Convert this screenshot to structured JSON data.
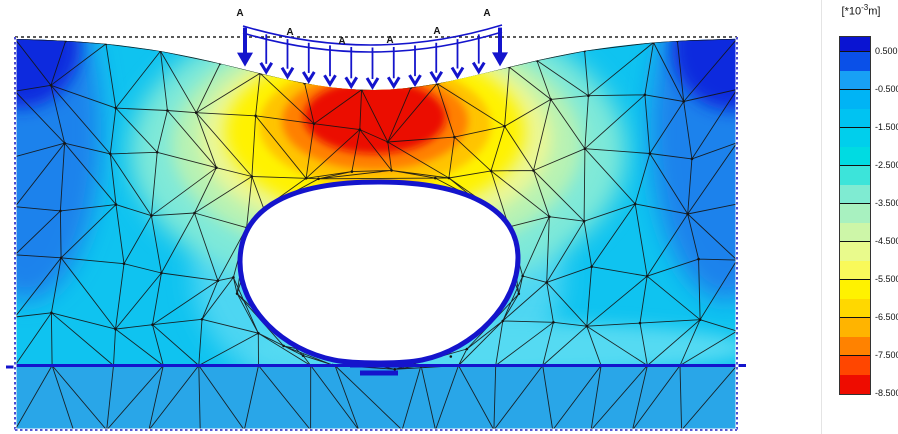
{
  "legend": {
    "unit_prefix": "[*10",
    "unit_exponent": "-3",
    "unit_suffix": "m]",
    "tick_labels": [
      "0.500",
      "-0.500",
      "-1.500",
      "-2.500",
      "-3.500",
      "-4.500",
      "-5.500",
      "-6.500",
      "-7.500",
      "-8.500"
    ],
    "segment_colors": [
      "#0A14D2",
      "#0A50E8",
      "#18A0F5",
      "#00B4F5",
      "#00C3F2",
      "#00CFEC",
      "#00DBE2",
      "#3CE4DA",
      "#7FEBD2",
      "#A8F1C0",
      "#CDF6A8",
      "#E9FA8C",
      "#F9F95A",
      "#FFF200",
      "#FFD800",
      "#FFB400",
      "#FF8200",
      "#FF4600",
      "#EE0C00"
    ]
  },
  "load": {
    "labels": [
      "A",
      "A",
      "A",
      "A",
      "A",
      "A"
    ]
  },
  "colors": {
    "structure_blue": "#1414CC",
    "boundary_dash_blue": "#2020C8",
    "mesh_line": "#141414",
    "field_base_cyan": "#0FC3F0",
    "field_below_line": "#29A6E8",
    "corner_heave_blue": "#0A2CDE",
    "hot_core_red": "#EB1000"
  },
  "chart_data": {
    "type": "heatmap",
    "title": "",
    "legend_unit": "*10^-3 m",
    "colorbar_tick_values": [
      0.5,
      -0.5,
      -1.5,
      -2.5,
      -3.5,
      -4.5,
      -5.5,
      -6.5,
      -7.5,
      -8.5
    ],
    "colorbar_segment_count": 19,
    "field": "vertical displacement shadings on deformed finite-element mesh (tunnel beneath strip load A)",
    "features": [
      {
        "region": "directly beneath strip load A at surface",
        "value_x10-3_m": "-7.5 to -8.5 (red core)"
      },
      {
        "region": "upper left and upper right model corners",
        "value_x10-3_m": "+0.5 and above (dark blue heave)"
      },
      {
        "region": "general field around tunnel cavity",
        "value_x10-3_m": "-1.5 to -2.5 (cyan)"
      },
      {
        "region": "below deep horizontal layer line",
        "value_x10-3_m": "about -1 (uniform azure)"
      }
    ],
    "load_marker_labels": [
      "A",
      "A",
      "A",
      "A",
      "A",
      "A"
    ]
  }
}
